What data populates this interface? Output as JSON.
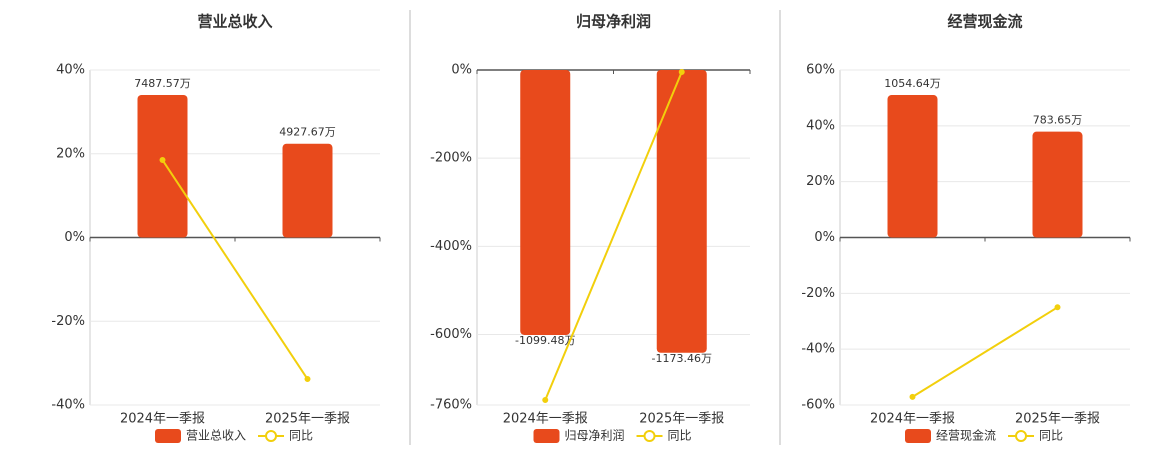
{
  "chart_data": [
    {
      "type": "combo",
      "title": "营业总收入",
      "categories": [
        "2024年一季报",
        "2025年一季报"
      ],
      "series": [
        {
          "name": "营业总收入",
          "type": "bar",
          "color": "#e84a1c",
          "axis": "y2",
          "values": [
            7487.57,
            4927.67
          ],
          "value_labels": [
            "7487.57万",
            "4927.67万"
          ]
        },
        {
          "name": "同比",
          "type": "line",
          "color": "#f2cf0c",
          "values": [
            18.5,
            -33.8
          ]
        }
      ],
      "ylim": [
        -40,
        40
      ],
      "yticks": [
        {
          "value": -40,
          "label": "-40%"
        },
        {
          "value": -20,
          "label": "-20%"
        },
        {
          "value": 0,
          "label": "0%"
        },
        {
          "value": 20,
          "label": "20%"
        },
        {
          "value": 40,
          "label": "40%"
        }
      ],
      "y2lim": [
        -8800,
        8800
      ],
      "grid": true,
      "legend": "bottom"
    },
    {
      "type": "combo",
      "title": "归母净利润",
      "categories": [
        "2024年一季报",
        "2025年一季报"
      ],
      "series": [
        {
          "name": "归母净利润",
          "type": "bar",
          "color": "#e84a1c",
          "axis": "y2",
          "values": [
            -1099.48,
            -1173.46
          ],
          "value_labels": [
            "-1099.48万",
            "-1173.46万"
          ]
        },
        {
          "name": "同比",
          "type": "line",
          "color": "#f2cf0c",
          "values": [
            -748.7,
            -4.5
          ]
        }
      ],
      "ylim": [
        -760,
        0
      ],
      "yticks": [
        {
          "value": -760,
          "label": "-760%"
        },
        {
          "value": -600,
          "label": "-600%"
        },
        {
          "value": -400,
          "label": "-400%"
        },
        {
          "value": -200,
          "label": "-200%"
        },
        {
          "value": 0,
          "label": "0%"
        }
      ],
      "y2lim": [
        -1390,
        0
      ],
      "grid": true,
      "legend": "bottom"
    },
    {
      "type": "combo",
      "title": "经营现金流",
      "categories": [
        "2024年一季报",
        "2025年一季报"
      ],
      "series": [
        {
          "name": "经营现金流",
          "type": "bar",
          "color": "#e84a1c",
          "axis": "y2",
          "values": [
            1054.64,
            783.65
          ],
          "value_labels": [
            "1054.64万",
            "783.65万"
          ]
        },
        {
          "name": "同比",
          "type": "line",
          "color": "#f2cf0c",
          "values": [
            -57.1,
            -25.0
          ]
        }
      ],
      "ylim": [
        -60,
        60
      ],
      "yticks": [
        {
          "value": -60,
          "label": "-60%"
        },
        {
          "value": -40,
          "label": "-40%"
        },
        {
          "value": -20,
          "label": "-20%"
        },
        {
          "value": 0,
          "label": "0%"
        },
        {
          "value": 20,
          "label": "20%"
        },
        {
          "value": 40,
          "label": "40%"
        },
        {
          "value": 60,
          "label": "60%"
        }
      ],
      "y2lim": [
        -1240,
        1240
      ],
      "grid": true,
      "legend": "bottom"
    }
  ]
}
